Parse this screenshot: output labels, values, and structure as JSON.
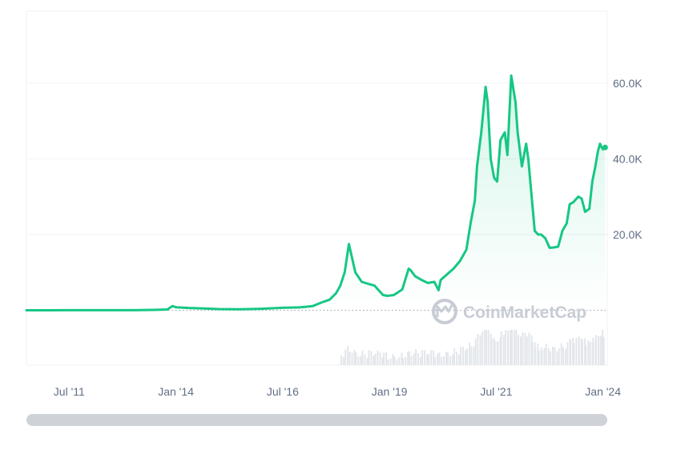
{
  "chart_data": {
    "type": "area",
    "title": "",
    "xlabel": "",
    "ylabel": "",
    "x_ticks": [
      "Jul '11",
      "Jan '14",
      "Jul '16",
      "Jan '19",
      "Jul '21",
      "Jan '24"
    ],
    "x_tick_years": [
      2011.5,
      2014.0,
      2016.5,
      2019.0,
      2021.5,
      2024.0
    ],
    "x_range": [
      2010.5,
      2024.1
    ],
    "y_ticks": [
      "20.0K",
      "40.0K",
      "60.0K"
    ],
    "y_tick_values": [
      20000,
      40000,
      60000
    ],
    "y_range": [
      -14500,
      79000
    ],
    "reference_line": 0,
    "grid": "horizontal",
    "colors": {
      "line": "#16c784",
      "area": "#16c784",
      "grid": "#eff2f5",
      "volume": "#e3e6ea",
      "axis_text": "#616e85",
      "scrollbar": "#cfd2d6",
      "early_line": "#ea3943"
    },
    "watermark": "CoinMarketCap",
    "series": [
      {
        "x": [
          2010.5,
          2011.0,
          2011.5,
          2012.0,
          2012.5,
          2013.0,
          2013.5,
          2013.8,
          2013.92,
          2014.0,
          2014.3,
          2014.6,
          2015.0,
          2015.5,
          2016.0,
          2016.5,
          2016.9,
          2017.2,
          2017.4,
          2017.6,
          2017.75,
          2017.85,
          2017.95,
          2018.05,
          2018.2,
          2018.35,
          2018.5,
          2018.65,
          2018.85,
          2018.95,
          2019.1,
          2019.3,
          2019.45,
          2019.5,
          2019.6,
          2019.75,
          2019.9,
          2020.05,
          2020.15,
          2020.2,
          2020.35,
          2020.5,
          2020.65,
          2020.8,
          2020.9,
          2021.0,
          2021.05,
          2021.15,
          2021.25,
          2021.3,
          2021.37,
          2021.45,
          2021.52,
          2021.6,
          2021.7,
          2021.76,
          2021.85,
          2021.95,
          2022.0,
          2022.1,
          2022.2,
          2022.25,
          2022.33,
          2022.4,
          2022.48,
          2022.55,
          2022.65,
          2022.75,
          2022.85,
          2022.95,
          2023.05,
          2023.15,
          2023.22,
          2023.3,
          2023.42,
          2023.5,
          2023.58,
          2023.68,
          2023.75,
          2023.82,
          2023.88,
          2023.93,
          2023.97,
          2024.0,
          2024.05
        ],
        "values": [
          0,
          0.5,
          15,
          6,
          7,
          13,
          90,
          200,
          1100,
          800,
          600,
          500,
          300,
          250,
          400,
          650,
          750,
          1100,
          2000,
          2800,
          4500,
          6500,
          10000,
          17500,
          10000,
          7500,
          7000,
          6500,
          4000,
          3800,
          4000,
          5500,
          11000,
          10500,
          9000,
          8000,
          7200,
          7500,
          5300,
          8000,
          9500,
          11000,
          13000,
          16000,
          23000,
          29000,
          38000,
          47000,
          59000,
          55000,
          40000,
          35000,
          34000,
          45000,
          47000,
          41000,
          62000,
          55000,
          47000,
          38000,
          44000,
          40000,
          30000,
          21000,
          20000,
          20000,
          19000,
          16500,
          16600,
          16800,
          21000,
          23000,
          28000,
          28500,
          30000,
          29500,
          26000,
          26800,
          34000,
          38000,
          42000,
          44000,
          43000,
          42500,
          43000
        ]
      }
    ]
  }
}
